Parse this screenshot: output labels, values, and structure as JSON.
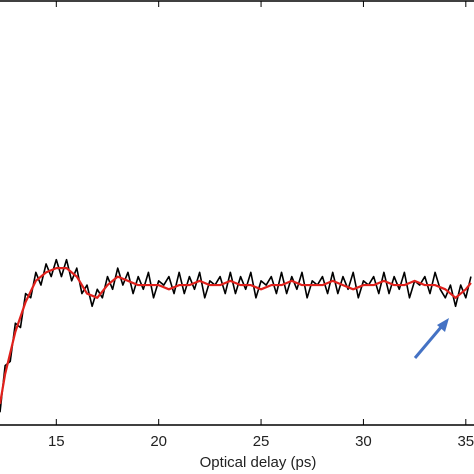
{
  "chart_data": {
    "type": "line",
    "xlabel": "Optical delay (ps)",
    "xlim": [
      12.25,
      35.4
    ],
    "xticks": [
      15,
      20,
      25,
      30,
      35
    ],
    "ylim": [
      0,
      1
    ],
    "series": [
      {
        "color": "#000000",
        "x": [
          12.25,
          12.5,
          12.75,
          13,
          13.25,
          13.5,
          13.75,
          14,
          14.25,
          14.5,
          14.75,
          15,
          15.25,
          15.5,
          15.75,
          16,
          16.25,
          16.5,
          16.75,
          17,
          17.25,
          17.5,
          17.75,
          18,
          18.25,
          18.5,
          18.75,
          19,
          19.25,
          19.5,
          19.75,
          20,
          20.25,
          20.5,
          20.75,
          21,
          21.25,
          21.5,
          21.75,
          22,
          22.25,
          22.5,
          22.75,
          23,
          23.25,
          23.5,
          23.75,
          24,
          24.25,
          24.5,
          24.75,
          25,
          25.25,
          25.5,
          25.75,
          26,
          26.25,
          26.5,
          26.75,
          27,
          27.25,
          27.5,
          27.75,
          28,
          28.25,
          28.5,
          28.75,
          29,
          29.25,
          29.5,
          29.75,
          30,
          30.25,
          30.5,
          30.75,
          31,
          31.25,
          31.5,
          31.75,
          32,
          32.25,
          32.5,
          32.75,
          33,
          33.25,
          33.5,
          33.75,
          34,
          34.25,
          34.5,
          34.75,
          35,
          35.25
        ],
        "values": [
          0.03,
          0.14,
          0.15,
          0.24,
          0.23,
          0.31,
          0.3,
          0.36,
          0.33,
          0.38,
          0.35,
          0.39,
          0.35,
          0.39,
          0.34,
          0.37,
          0.31,
          0.33,
          0.28,
          0.32,
          0.3,
          0.35,
          0.32,
          0.37,
          0.33,
          0.36,
          0.31,
          0.35,
          0.32,
          0.36,
          0.3,
          0.34,
          0.33,
          0.35,
          0.31,
          0.36,
          0.31,
          0.35,
          0.32,
          0.36,
          0.3,
          0.34,
          0.33,
          0.35,
          0.31,
          0.36,
          0.31,
          0.35,
          0.32,
          0.36,
          0.3,
          0.34,
          0.33,
          0.35,
          0.31,
          0.36,
          0.31,
          0.35,
          0.32,
          0.36,
          0.3,
          0.34,
          0.33,
          0.35,
          0.31,
          0.36,
          0.31,
          0.35,
          0.32,
          0.36,
          0.3,
          0.34,
          0.33,
          0.35,
          0.31,
          0.36,
          0.31,
          0.35,
          0.32,
          0.36,
          0.3,
          0.34,
          0.33,
          0.35,
          0.31,
          0.36,
          0.32,
          0.3,
          0.33,
          0.28,
          0.33,
          0.3,
          0.35
        ]
      },
      {
        "color": "#e0201b",
        "x": [
          12.25,
          12.5,
          13,
          13.5,
          14,
          14.5,
          15,
          15.5,
          16,
          16.5,
          17,
          17.5,
          18,
          18.5,
          19,
          19.5,
          20,
          20.5,
          21,
          21.5,
          22,
          22.5,
          23,
          23.5,
          24,
          24.5,
          25,
          25.5,
          26,
          26.5,
          27,
          27.5,
          28,
          28.5,
          29,
          29.5,
          30,
          30.5,
          31,
          31.5,
          32,
          32.5,
          33,
          33.5,
          34,
          34.5,
          35,
          35.25
        ],
        "values": [
          0.05,
          0.12,
          0.22,
          0.29,
          0.34,
          0.36,
          0.37,
          0.37,
          0.35,
          0.31,
          0.3,
          0.33,
          0.35,
          0.34,
          0.33,
          0.33,
          0.33,
          0.32,
          0.33,
          0.33,
          0.34,
          0.33,
          0.33,
          0.34,
          0.33,
          0.33,
          0.32,
          0.33,
          0.33,
          0.34,
          0.33,
          0.33,
          0.33,
          0.34,
          0.33,
          0.32,
          0.33,
          0.33,
          0.34,
          0.33,
          0.33,
          0.34,
          0.33,
          0.33,
          0.32,
          0.3,
          0.32,
          0.335
        ]
      }
    ]
  }
}
